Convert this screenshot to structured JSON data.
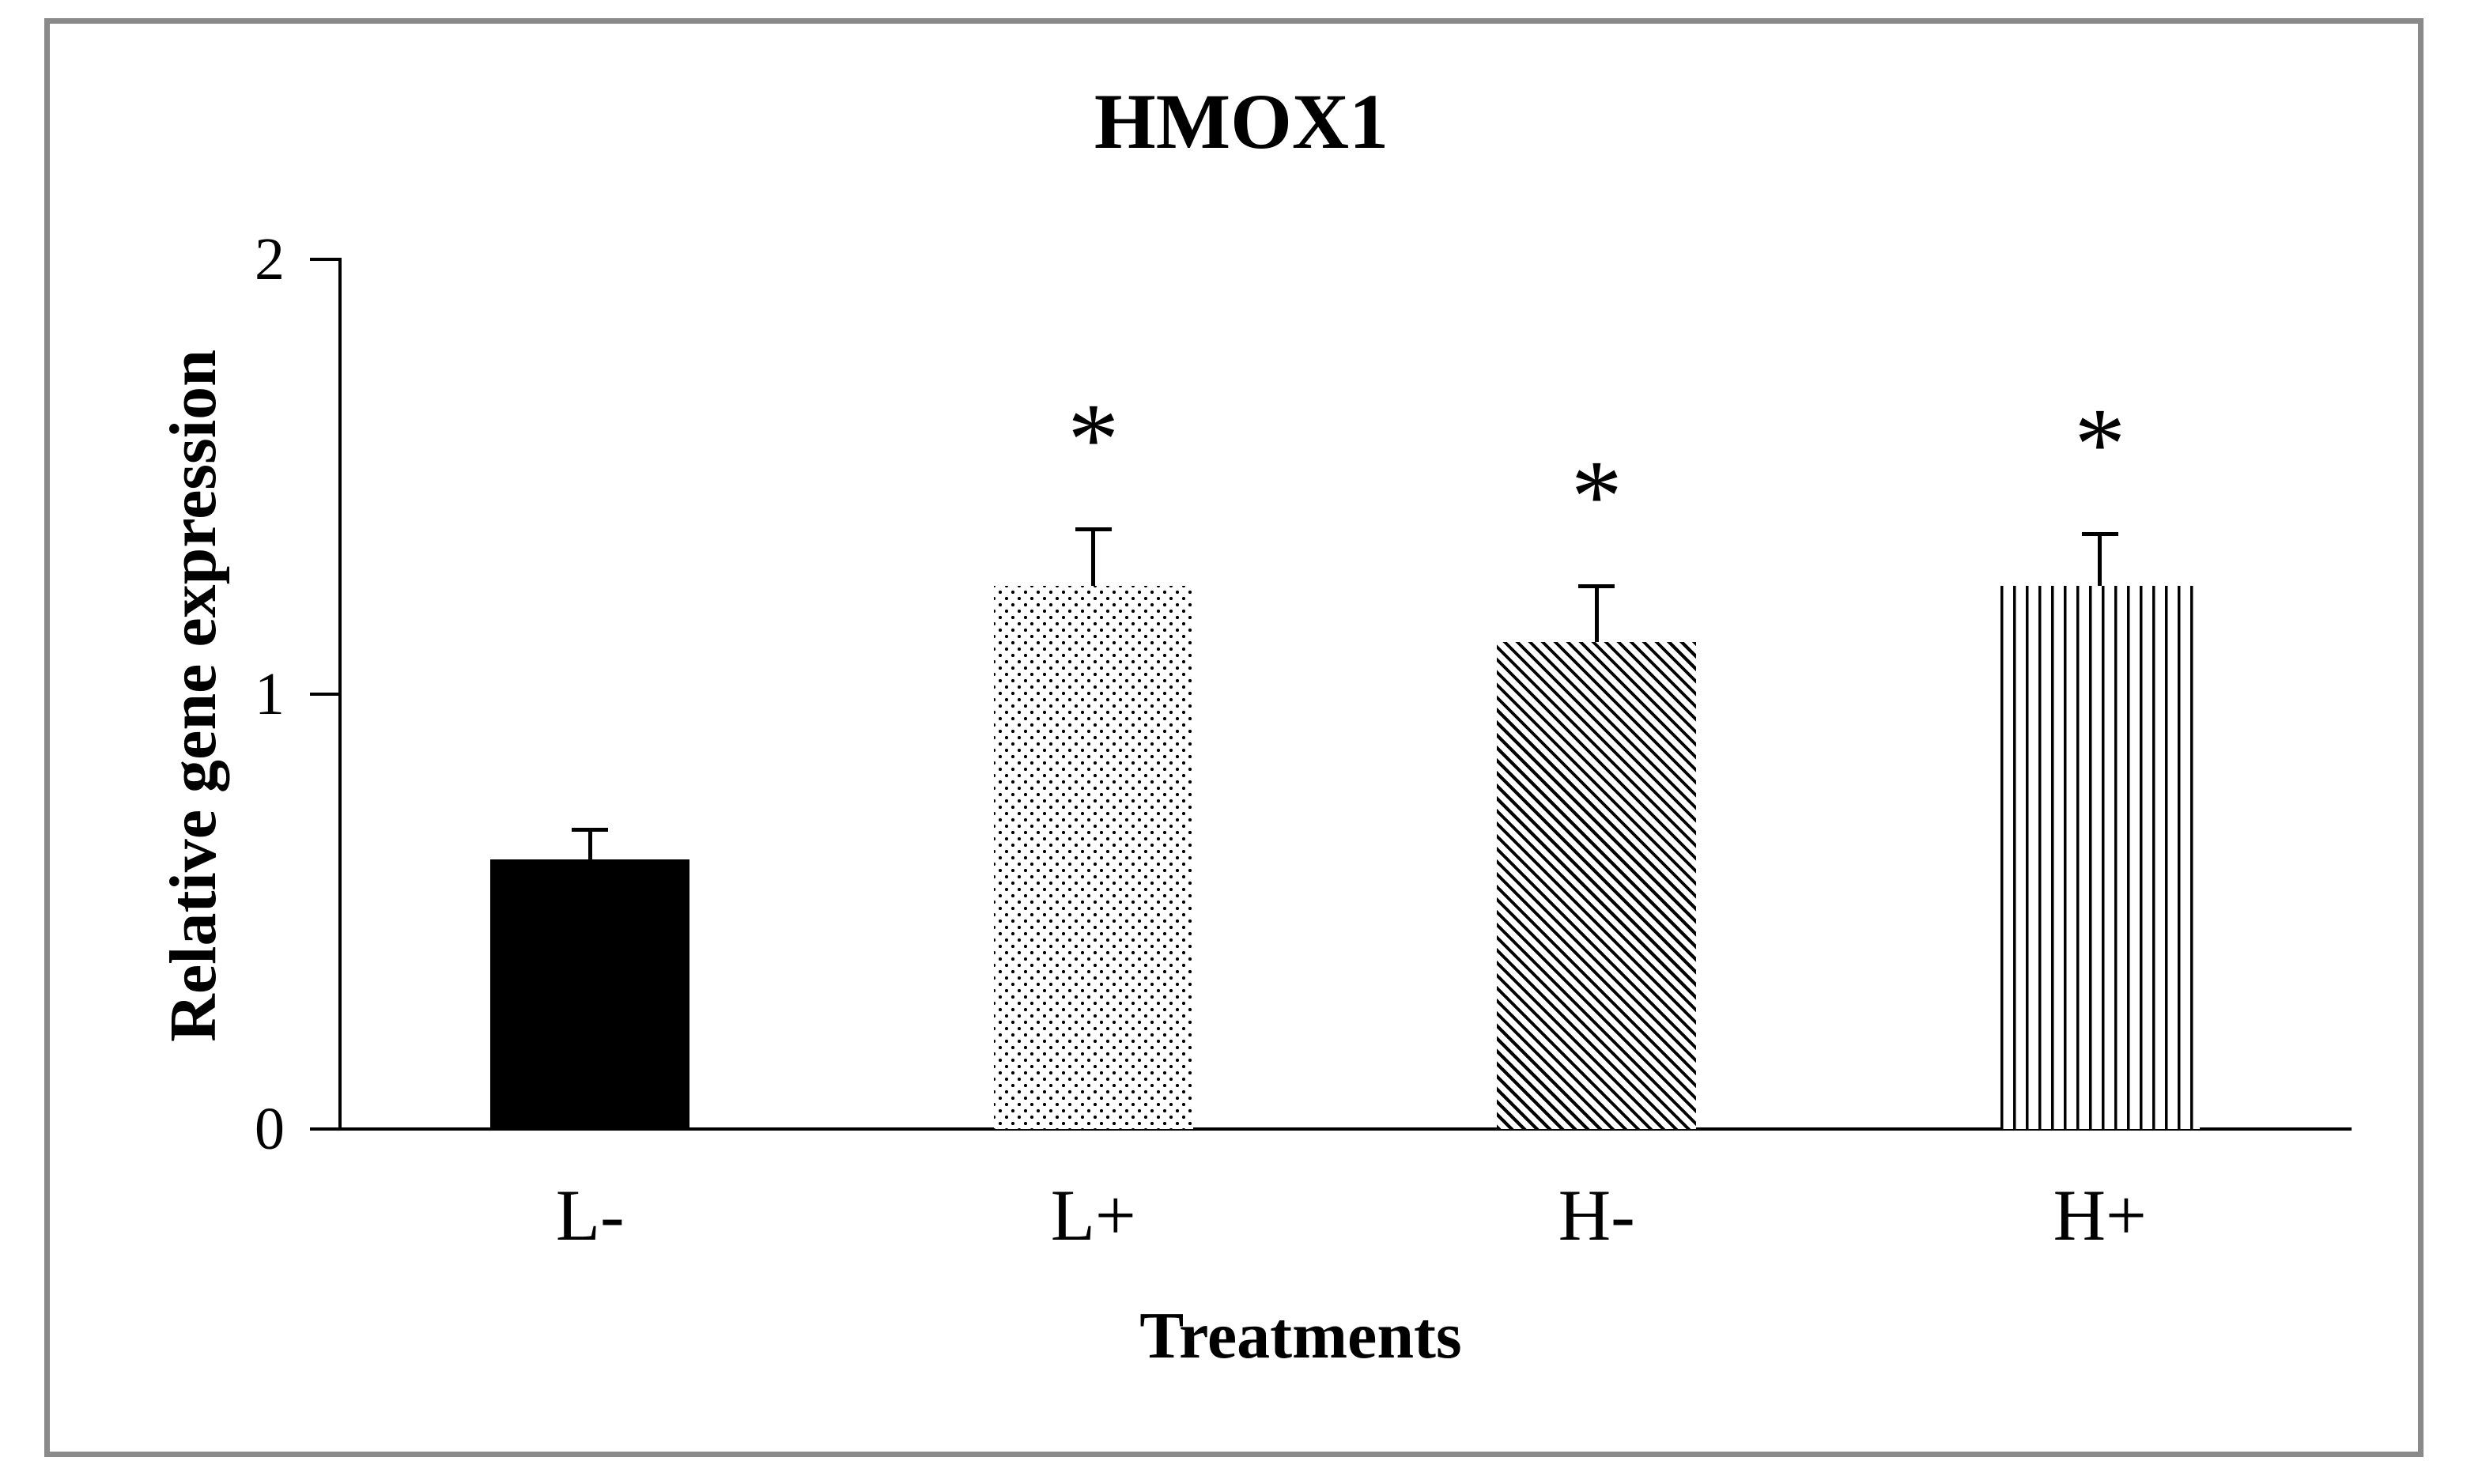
{
  "page": {
    "background_color": "#ffffff",
    "frame_border_color": "#8a8a8a",
    "text_color": "#000000"
  },
  "chart_data": {
    "type": "bar",
    "title": "HMOX1",
    "xlabel": "Treatments",
    "ylabel": "Relative gene expression",
    "categories": [
      "L-",
      "L+",
      "H-",
      "H+"
    ],
    "values": [
      0.62,
      1.25,
      1.12,
      1.25
    ],
    "error_plus": [
      0.07,
      0.13,
      0.13,
      0.12
    ],
    "significance_labels": [
      "",
      "*",
      "*",
      "*"
    ],
    "bar_patterns": [
      "solid-black",
      "dotted",
      "diagonal-stripes-down",
      "vertical-stripes"
    ],
    "bar_color": "#000000",
    "yticks": [
      0,
      1,
      2
    ],
    "ylim": [
      0,
      2
    ],
    "grid": false,
    "legend_position": "none"
  }
}
